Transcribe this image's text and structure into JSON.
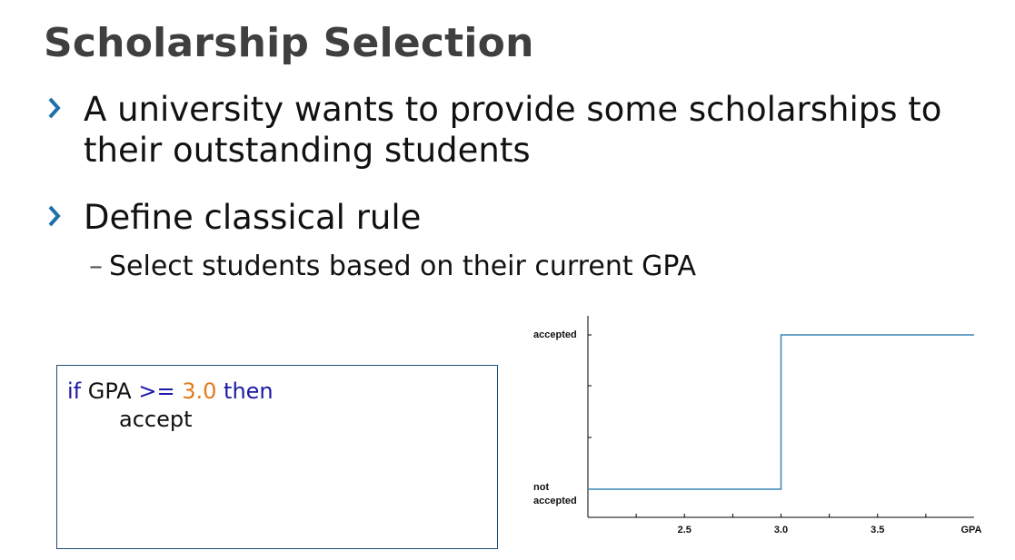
{
  "slide": {
    "title": "Scholarship Selection",
    "bullets": [
      {
        "text": "A university wants to provide some scholarships to their outstanding students"
      },
      {
        "text": "Define classical rule"
      }
    ],
    "sub_bullet": {
      "dash": "–",
      "text": "Select students based on their current GPA"
    }
  },
  "code": {
    "line1": {
      "kw_if": "if",
      "var": "GPA",
      "op": ">=",
      "value": "3.0",
      "kw_then": "then"
    },
    "line2": "accept"
  },
  "colors": {
    "title": "#3f3f3f",
    "bullet_chevron": "#1f6fa8",
    "keyword": "#1a1aa6",
    "number": "#e07b1a",
    "box_border": "#1f4e79",
    "step_line": "#3a86b5"
  },
  "chart_data": {
    "type": "line",
    "title": "",
    "xlabel": "GPA",
    "ylabel": "",
    "xlim": [
      2.0,
      4.0
    ],
    "x_ticks": [
      2.5,
      3.0,
      3.5
    ],
    "x_tick_labels": [
      "2.5",
      "3.0",
      "3.5"
    ],
    "y_categories": [
      "not accepted",
      "accepted"
    ],
    "y_tick_label_lines": [
      [
        "not",
        "accepted"
      ],
      [
        "accepted"
      ]
    ],
    "series": [
      {
        "step": true,
        "x": [
          2.0,
          3.0,
          3.0,
          4.0
        ],
        "y": [
          0,
          0,
          1,
          1
        ]
      }
    ],
    "grid": false
  }
}
